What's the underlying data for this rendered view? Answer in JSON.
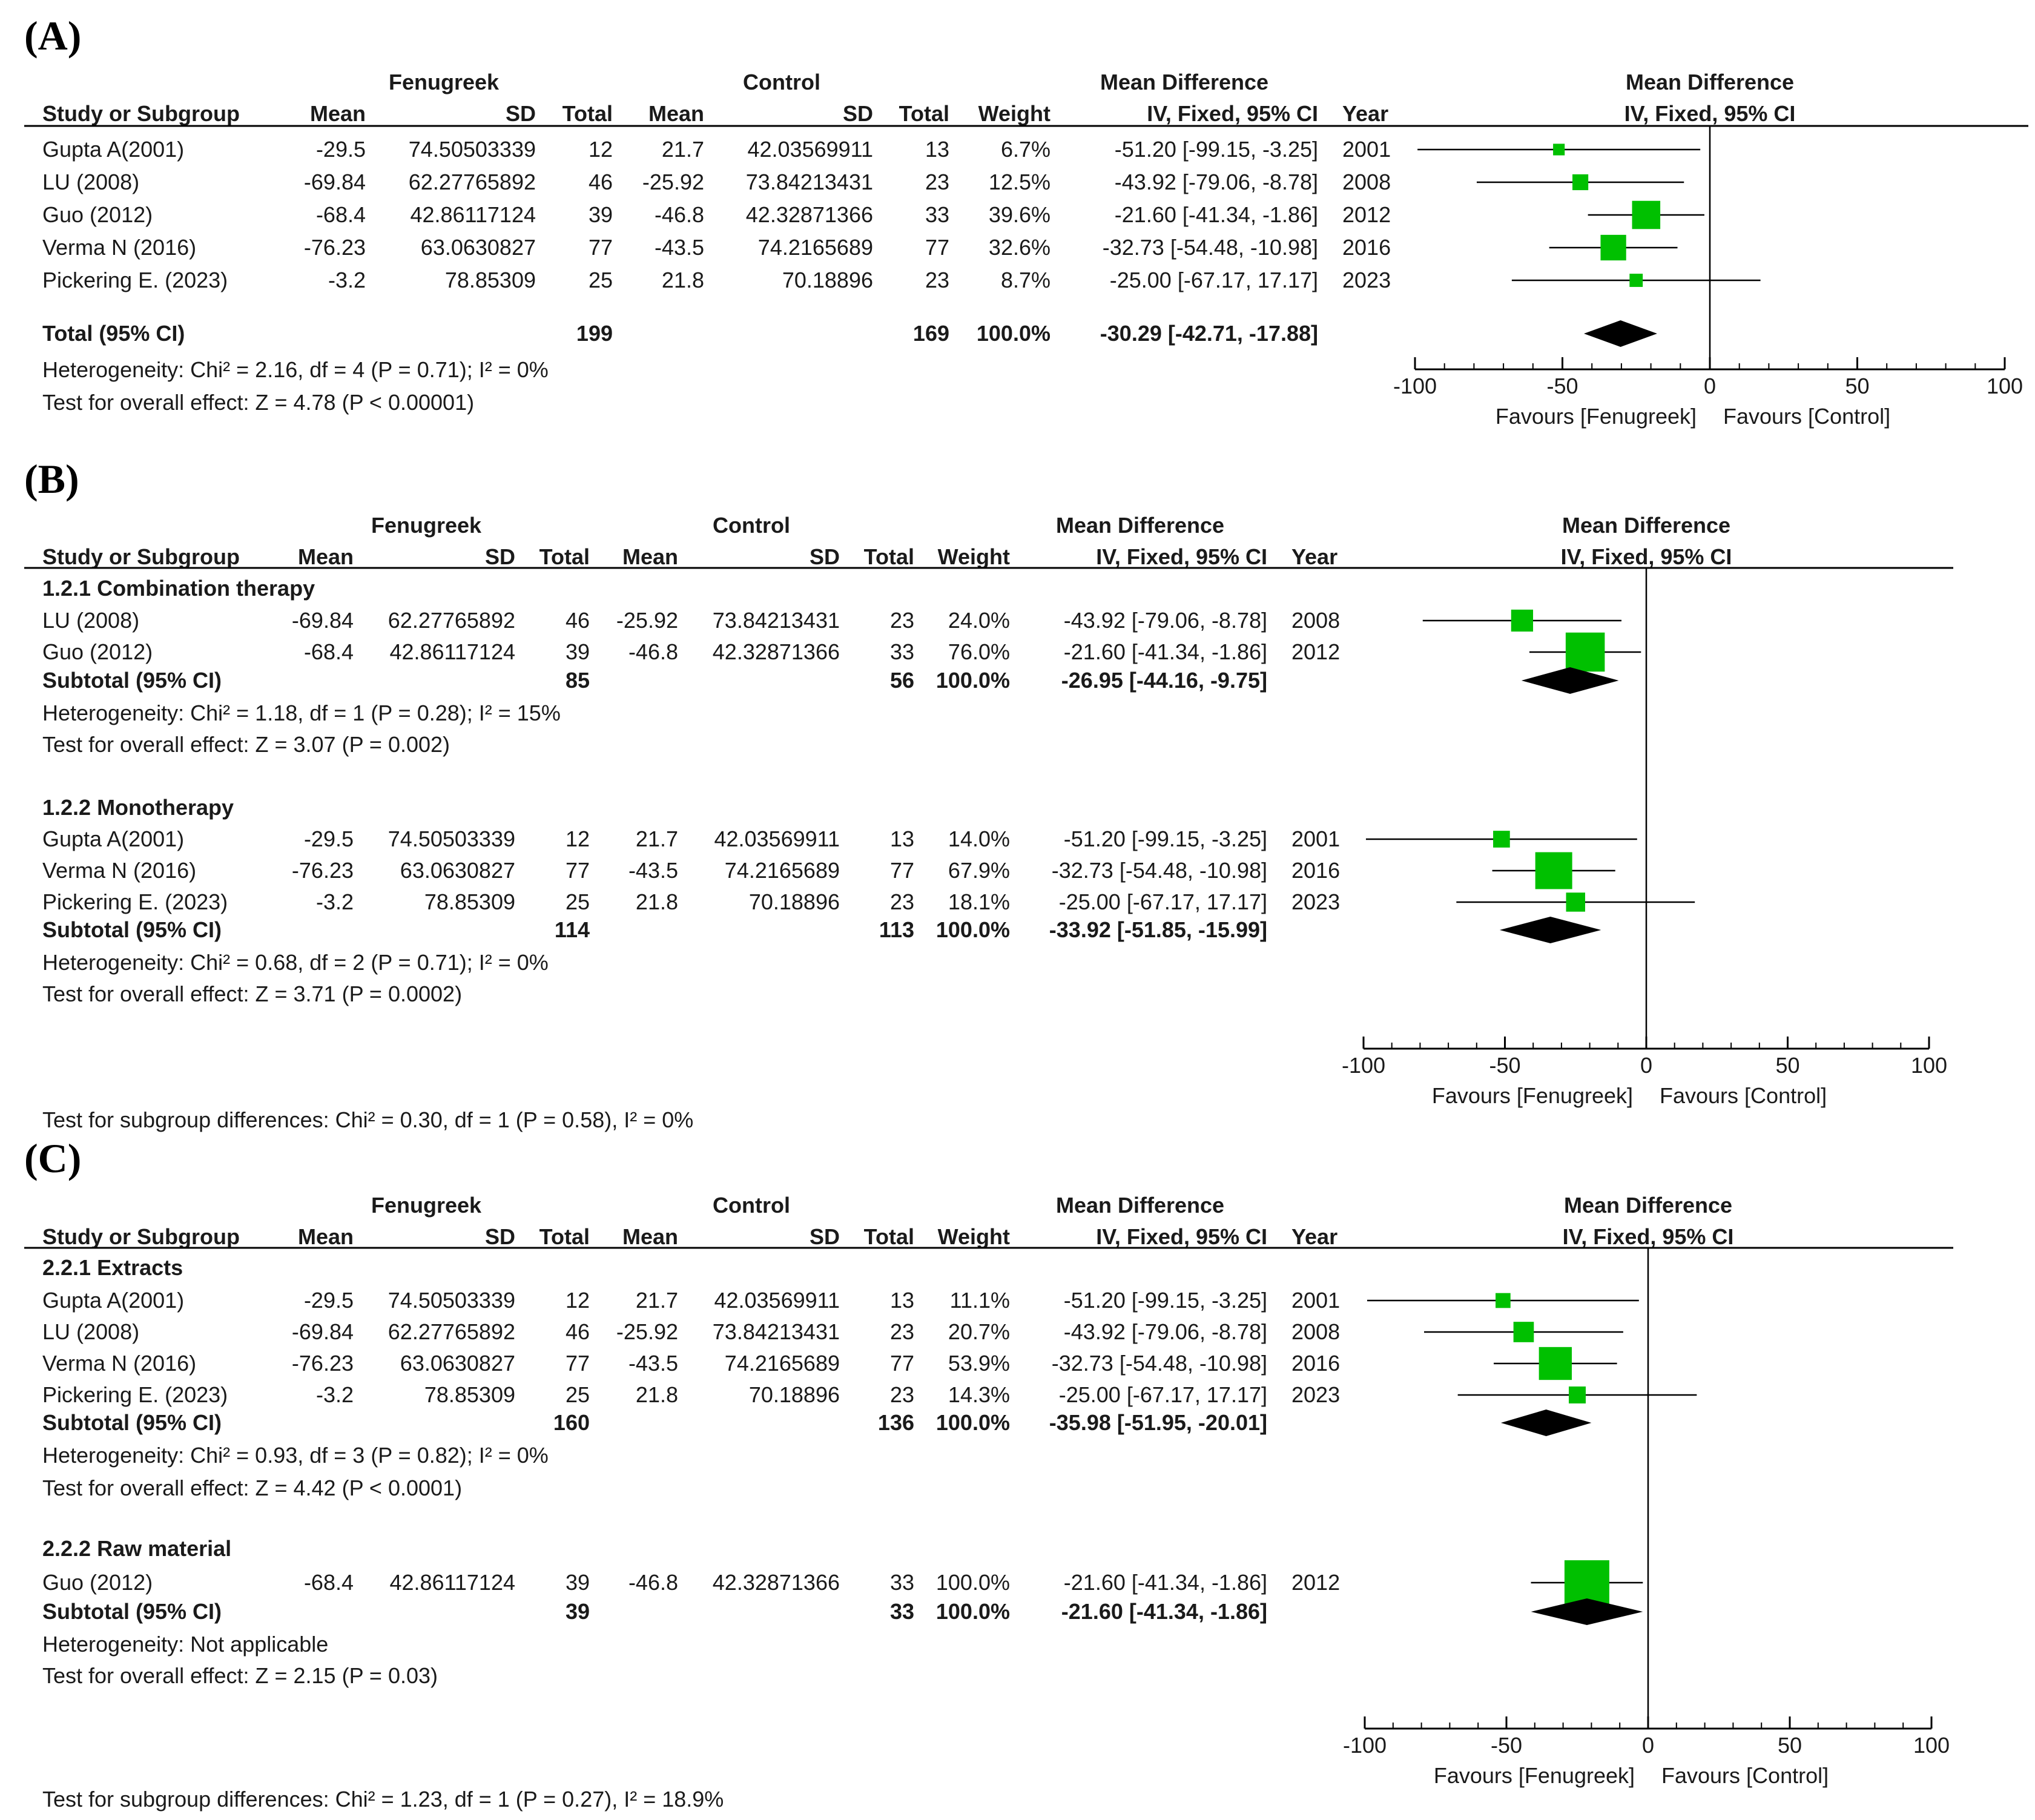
{
  "columns": {
    "study": "Study or Subgroup",
    "fenugreek_group": "Fenugreek",
    "control_group": "Control",
    "mean": "Mean",
    "sd": "SD",
    "total": "Total",
    "weight": "Weight",
    "md_title": "Mean Difference",
    "md_method": "IV, Fixed, 95% CI",
    "year": "Year"
  },
  "colors": {
    "marker": "#00c000",
    "diamond": "#000000",
    "line": "#000000",
    "text": "#1a1a1a"
  },
  "chart_data": [
    {
      "type": "forest",
      "panel_label": "(A)",
      "xlim": [
        -100,
        100
      ],
      "ticks": [
        "-100",
        "-50",
        "0",
        "50",
        "100"
      ],
      "favours_left": "Favours [Fenugreek]",
      "favours_right": "Favours [Control]",
      "groups": [
        {
          "heading": "",
          "studies": [
            {
              "name": "Gupta A(2001)",
              "f_mean": "-29.5",
              "f_sd": "74.50503339",
              "f_total": "12",
              "c_mean": "21.7",
              "c_sd": "42.03569911",
              "c_total": "13",
              "weight": "6.7%",
              "md_text": "-51.20 [-99.15, -3.25]",
              "year": "2001",
              "md": -51.2,
              "lo": -99.15,
              "hi": -3.25,
              "w": 6.7
            },
            {
              "name": "LU (2008)",
              "f_mean": "-69.84",
              "f_sd": "62.27765892",
              "f_total": "46",
              "c_mean": "-25.92",
              "c_sd": "73.84213431",
              "c_total": "23",
              "weight": "12.5%",
              "md_text": "-43.92 [-79.06, -8.78]",
              "year": "2008",
              "md": -43.92,
              "lo": -79.06,
              "hi": -8.78,
              "w": 12.5
            },
            {
              "name": "Guo (2012)",
              "f_mean": "-68.4",
              "f_sd": "42.86117124",
              "f_total": "39",
              "c_mean": "-46.8",
              "c_sd": "42.32871366",
              "c_total": "33",
              "weight": "39.6%",
              "md_text": "-21.60 [-41.34, -1.86]",
              "year": "2012",
              "md": -21.6,
              "lo": -41.34,
              "hi": -1.86,
              "w": 39.6
            },
            {
              "name": "Verma N (2016)",
              "f_mean": "-76.23",
              "f_sd": "63.0630827",
              "f_total": "77",
              "c_mean": "-43.5",
              "c_sd": "74.2165689",
              "c_total": "77",
              "weight": "32.6%",
              "md_text": "-32.73 [-54.48, -10.98]",
              "year": "2016",
              "md": -32.73,
              "lo": -54.48,
              "hi": -10.98,
              "w": 32.6
            },
            {
              "name": "Pickering E. (2023)",
              "f_mean": "-3.2",
              "f_sd": "78.85309",
              "f_total": "25",
              "c_mean": "21.8",
              "c_sd": "70.18896",
              "c_total": "23",
              "weight": "8.7%",
              "md_text": "-25.00 [-67.17, 17.17]",
              "year": "2023",
              "md": -25.0,
              "lo": -67.17,
              "hi": 17.17,
              "w": 8.7
            }
          ],
          "subtotal": {
            "label": "Total (95% CI)",
            "f_total": "199",
            "c_total": "169",
            "weight": "100.0%",
            "md_text": "-30.29 [-42.71, -17.88]",
            "md": -30.29,
            "lo": -42.71,
            "hi": -17.88
          },
          "heterogeneity": "Heterogeneity: Chi² = 2.16, df = 4 (P = 0.71); I² = 0%",
          "overall": "Test for overall effect: Z = 4.78 (P < 0.00001)"
        }
      ],
      "subgroup_test": ""
    },
    {
      "type": "forest",
      "panel_label": "(B)",
      "xlim": [
        -100,
        100
      ],
      "ticks": [
        "-100",
        "-50",
        "0",
        "50",
        "100"
      ],
      "favours_left": "Favours [Fenugreek]",
      "favours_right": "Favours [Control]",
      "groups": [
        {
          "heading": "1.2.1 Combination therapy",
          "studies": [
            {
              "name": "LU (2008)",
              "f_mean": "-69.84",
              "f_sd": "62.27765892",
              "f_total": "46",
              "c_mean": "-25.92",
              "c_sd": "73.84213431",
              "c_total": "23",
              "weight": "24.0%",
              "md_text": "-43.92 [-79.06, -8.78]",
              "year": "2008",
              "md": -43.92,
              "lo": -79.06,
              "hi": -8.78,
              "w": 24.0
            },
            {
              "name": "Guo (2012)",
              "f_mean": "-68.4",
              "f_sd": "42.86117124",
              "f_total": "39",
              "c_mean": "-46.8",
              "c_sd": "42.32871366",
              "c_total": "33",
              "weight": "76.0%",
              "md_text": "-21.60 [-41.34, -1.86]",
              "year": "2012",
              "md": -21.6,
              "lo": -41.34,
              "hi": -1.86,
              "w": 76.0
            }
          ],
          "subtotal": {
            "label": "Subtotal (95% CI)",
            "f_total": "85",
            "c_total": "56",
            "weight": "100.0%",
            "md_text": "-26.95 [-44.16, -9.75]",
            "md": -26.95,
            "lo": -44.16,
            "hi": -9.75
          },
          "heterogeneity": "Heterogeneity: Chi² = 1.18, df = 1 (P = 0.28); I² = 15%",
          "overall": "Test for overall effect: Z = 3.07 (P = 0.002)"
        },
        {
          "heading": "1.2.2 Monotherapy",
          "studies": [
            {
              "name": "Gupta A(2001)",
              "f_mean": "-29.5",
              "f_sd": "74.50503339",
              "f_total": "12",
              "c_mean": "21.7",
              "c_sd": "42.03569911",
              "c_total": "13",
              "weight": "14.0%",
              "md_text": "-51.20 [-99.15, -3.25]",
              "year": "2001",
              "md": -51.2,
              "lo": -99.15,
              "hi": -3.25,
              "w": 14.0
            },
            {
              "name": "Verma N (2016)",
              "f_mean": "-76.23",
              "f_sd": "63.0630827",
              "f_total": "77",
              "c_mean": "-43.5",
              "c_sd": "74.2165689",
              "c_total": "77",
              "weight": "67.9%",
              "md_text": "-32.73 [-54.48, -10.98]",
              "year": "2016",
              "md": -32.73,
              "lo": -54.48,
              "hi": -10.98,
              "w": 67.9
            },
            {
              "name": "Pickering E. (2023)",
              "f_mean": "-3.2",
              "f_sd": "78.85309",
              "f_total": "25",
              "c_mean": "21.8",
              "c_sd": "70.18896",
              "c_total": "23",
              "weight": "18.1%",
              "md_text": "-25.00 [-67.17, 17.17]",
              "year": "2023",
              "md": -25.0,
              "lo": -67.17,
              "hi": 17.17,
              "w": 18.1
            }
          ],
          "subtotal": {
            "label": "Subtotal (95% CI)",
            "f_total": "114",
            "c_total": "113",
            "weight": "100.0%",
            "md_text": "-33.92 [-51.85, -15.99]",
            "md": -33.92,
            "lo": -51.85,
            "hi": -15.99
          },
          "heterogeneity": "Heterogeneity: Chi² = 0.68, df = 2 (P = 0.71); I² = 0%",
          "overall": "Test for overall effect: Z = 3.71 (P = 0.0002)"
        }
      ],
      "subgroup_test": "Test for subgroup differences: Chi² = 0.30, df = 1 (P = 0.58), I² = 0%"
    },
    {
      "type": "forest",
      "panel_label": "(C)",
      "xlim": [
        -100,
        100
      ],
      "ticks": [
        "-100",
        "-50",
        "0",
        "50",
        "100"
      ],
      "favours_left": "Favours [Fenugreek]",
      "favours_right": "Favours [Control]",
      "groups": [
        {
          "heading": "2.2.1 Extracts",
          "studies": [
            {
              "name": "Gupta A(2001)",
              "f_mean": "-29.5",
              "f_sd": "74.50503339",
              "f_total": "12",
              "c_mean": "21.7",
              "c_sd": "42.03569911",
              "c_total": "13",
              "weight": "11.1%",
              "md_text": "-51.20 [-99.15, -3.25]",
              "year": "2001",
              "md": -51.2,
              "lo": -99.15,
              "hi": -3.25,
              "w": 11.1
            },
            {
              "name": "LU (2008)",
              "f_mean": "-69.84",
              "f_sd": "62.27765892",
              "f_total": "46",
              "c_mean": "-25.92",
              "c_sd": "73.84213431",
              "c_total": "23",
              "weight": "20.7%",
              "md_text": "-43.92 [-79.06, -8.78]",
              "year": "2008",
              "md": -43.92,
              "lo": -79.06,
              "hi": -8.78,
              "w": 20.7
            },
            {
              "name": "Verma N (2016)",
              "f_mean": "-76.23",
              "f_sd": "63.0630827",
              "f_total": "77",
              "c_mean": "-43.5",
              "c_sd": "74.2165689",
              "c_total": "77",
              "weight": "53.9%",
              "md_text": "-32.73 [-54.48, -10.98]",
              "year": "2016",
              "md": -32.73,
              "lo": -54.48,
              "hi": -10.98,
              "w": 53.9
            },
            {
              "name": "Pickering E. (2023)",
              "f_mean": "-3.2",
              "f_sd": "78.85309",
              "f_total": "25",
              "c_mean": "21.8",
              "c_sd": "70.18896",
              "c_total": "23",
              "weight": "14.3%",
              "md_text": "-25.00 [-67.17, 17.17]",
              "year": "2023",
              "md": -25.0,
              "lo": -67.17,
              "hi": 17.17,
              "w": 14.3
            }
          ],
          "subtotal": {
            "label": "Subtotal (95% CI)",
            "f_total": "160",
            "c_total": "136",
            "weight": "100.0%",
            "md_text": "-35.98 [-51.95, -20.01]",
            "md": -35.98,
            "lo": -51.95,
            "hi": -20.01
          },
          "heterogeneity": "Heterogeneity: Chi² = 0.93, df = 3 (P = 0.82); I² = 0%",
          "overall": "Test for overall effect: Z = 4.42 (P < 0.0001)"
        },
        {
          "heading": "2.2.2 Raw material",
          "studies": [
            {
              "name": "Guo (2012)",
              "f_mean": "-68.4",
              "f_sd": "42.86117124",
              "f_total": "39",
              "c_mean": "-46.8",
              "c_sd": "42.32871366",
              "c_total": "33",
              "weight": "100.0%",
              "md_text": "-21.60 [-41.34, -1.86]",
              "year": "2012",
              "md": -21.6,
              "lo": -41.34,
              "hi": -1.86,
              "w": 100.0
            }
          ],
          "subtotal": {
            "label": "Subtotal (95% CI)",
            "f_total": "39",
            "c_total": "33",
            "weight": "100.0%",
            "md_text": "-21.60 [-41.34, -1.86]",
            "md": -21.6,
            "lo": -41.34,
            "hi": -1.86
          },
          "heterogeneity": "Heterogeneity: Not applicable",
          "overall": "Test for overall effect: Z = 2.15 (P = 0.03)"
        }
      ],
      "subgroup_test": "Test for subgroup differences: Chi² = 1.23, df = 1 (P = 0.27), I² = 18.9%"
    }
  ]
}
